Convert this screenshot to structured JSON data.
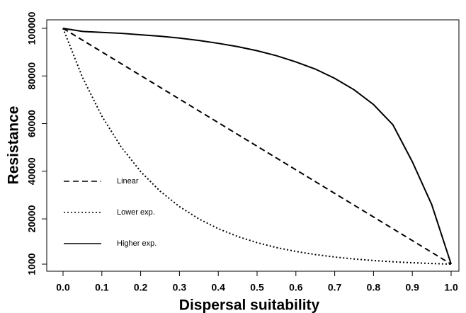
{
  "chart_data": {
    "type": "line",
    "x_label": "Dispersal suitability",
    "y_label": "Resistance",
    "x": [
      0,
      0.05,
      0.1,
      0.15,
      0.2,
      0.25,
      0.3,
      0.35,
      0.4,
      0.45,
      0.5,
      0.55,
      0.6,
      0.65,
      0.7,
      0.75,
      0.8,
      0.85,
      0.9,
      0.95,
      1
    ],
    "series": [
      {
        "name": "Linear",
        "color": "#000000",
        "dash": "dashed",
        "values": [
          100000,
          95050,
          90100,
          85150,
          80200,
          75250,
          70300,
          65350,
          60400,
          55450,
          50500,
          45550,
          40600,
          35650,
          30700,
          25750,
          20800,
          15850,
          10900,
          5950,
          1000
        ]
      },
      {
        "name": "Lower exp.",
        "color": "#000000",
        "dash": "dotted",
        "values": [
          100000,
          79450,
          63130,
          50160,
          39850,
          31660,
          25150,
          19990,
          15880,
          12610,
          10020,
          7960,
          6330,
          5020,
          3990,
          3170,
          2520,
          2000,
          1590,
          1260,
          1000
        ]
      },
      {
        "name": "Higher exp.",
        "color": "#000000",
        "dash": "solid",
        "values": [
          100000,
          98700,
          98300,
          97900,
          97300,
          96700,
          95900,
          94900,
          93700,
          92300,
          90600,
          88500,
          85900,
          82900,
          79000,
          74200,
          68000,
          59500,
          44000,
          26000,
          1000
        ]
      }
    ],
    "xlim": [
      0,
      1
    ],
    "ylim": [
      1000,
      100000
    ],
    "xticks": [
      {
        "value": 0,
        "label": "0.0"
      },
      0.1,
      0.2,
      0.3,
      0.4,
      0.5,
      0.6,
      0.7,
      0.8,
      0.9,
      {
        "value": 1,
        "label": "1.0"
      }
    ],
    "yticks": [
      1000,
      20000,
      40000,
      60000,
      80000,
      100000
    ],
    "grid": false,
    "legend": "left"
  }
}
